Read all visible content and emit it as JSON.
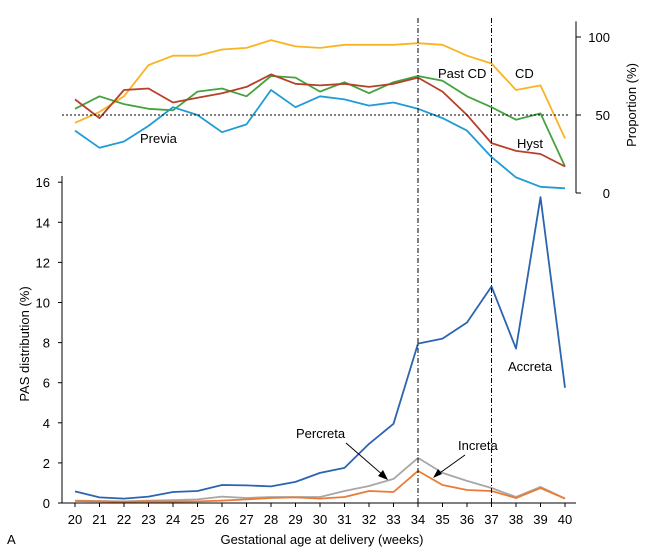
{
  "panel_label": "A",
  "chart_data": [
    {
      "type": "line",
      "ylabel": "Proportion (%)",
      "ylim": [
        0,
        100
      ],
      "yticks": [
        0,
        50,
        100
      ],
      "reference_line": 50,
      "x": [
        20,
        21,
        22,
        23,
        24,
        25,
        26,
        27,
        28,
        29,
        30,
        31,
        32,
        33,
        34,
        35,
        36,
        37,
        38,
        39,
        40
      ],
      "series": [
        {
          "name": "CD",
          "color": "#f9b423",
          "values": [
            45,
            52,
            62,
            82,
            88,
            88,
            92,
            93,
            98,
            94,
            93,
            95,
            95,
            95,
            96,
            95,
            88,
            83,
            66,
            69,
            35
          ]
        },
        {
          "name": "Past CD",
          "color": "#44a33f",
          "values": [
            54,
            62,
            57,
            54,
            53,
            65,
            67,
            62,
            75,
            74,
            65,
            71,
            64,
            71,
            75,
            72,
            62,
            55,
            47,
            51,
            17
          ]
        },
        {
          "name": "Hyst",
          "color": "#b5412a",
          "values": [
            60,
            48,
            66,
            67,
            58,
            61,
            64,
            68,
            76,
            70,
            69,
            70,
            68,
            70,
            74,
            65,
            50,
            32,
            27,
            25,
            17
          ]
        },
        {
          "name": "Previa",
          "color": "#229bd4",
          "values": [
            40,
            29,
            33,
            43,
            55,
            50,
            39,
            44,
            66,
            55,
            62,
            60,
            56,
            58,
            54,
            48,
            40,
            23,
            10,
            4,
            3
          ]
        }
      ]
    },
    {
      "type": "line",
      "xlabel": "Gestational age at delivery (weeks)",
      "ylabel": "PAS distribution (%)",
      "ylim": [
        0,
        16.5
      ],
      "yticks": [
        0,
        2,
        4,
        6,
        8,
        10,
        12,
        14,
        16
      ],
      "x": [
        20,
        21,
        22,
        23,
        24,
        25,
        26,
        27,
        28,
        29,
        30,
        31,
        32,
        33,
        34,
        35,
        36,
        37,
        38,
        39,
        40
      ],
      "vertical_lines": [
        34,
        37
      ],
      "series": [
        {
          "name": "Accreta",
          "color": "#2c64b0",
          "values": [
            0.58,
            0.28,
            0.22,
            0.32,
            0.55,
            0.6,
            0.9,
            0.88,
            0.83,
            1.05,
            1.5,
            1.75,
            2.95,
            3.95,
            7.95,
            8.2,
            9.0,
            10.8,
            7.7,
            15.25,
            5.75
          ]
        },
        {
          "name": "Percreta",
          "color": "#a7a7a7",
          "values": [
            0.12,
            0.1,
            0.08,
            0.12,
            0.14,
            0.18,
            0.32,
            0.25,
            0.3,
            0.3,
            0.3,
            0.6,
            0.85,
            1.2,
            2.25,
            1.5,
            1.1,
            0.75,
            0.3,
            0.8,
            0.22
          ]
        },
        {
          "name": "Increta",
          "color": "#ec7a35",
          "values": [
            0.1,
            0.08,
            0.06,
            0.08,
            0.07,
            0.08,
            0.12,
            0.18,
            0.25,
            0.28,
            0.22,
            0.3,
            0.6,
            0.55,
            1.6,
            0.9,
            0.65,
            0.6,
            0.25,
            0.75,
            0.22
          ]
        }
      ]
    }
  ]
}
